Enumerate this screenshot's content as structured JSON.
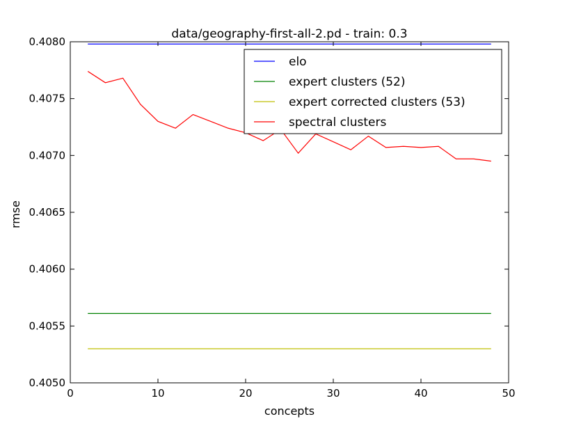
{
  "chart_data": {
    "type": "line",
    "title": "data/geography-first-all-2.pd - train: 0.3",
    "xlabel": "concepts",
    "ylabel": "rmse",
    "xlim": [
      0,
      50
    ],
    "ylim": [
      0.405,
      0.408
    ],
    "xticks": [
      0,
      10,
      20,
      30,
      40,
      50
    ],
    "xtick_labels": [
      "0",
      "10",
      "20",
      "30",
      "40",
      "50"
    ],
    "yticks": [
      0.405,
      0.4055,
      0.406,
      0.4065,
      0.407,
      0.4075,
      0.408
    ],
    "ytick_labels": [
      "0.4050",
      "0.4055",
      "0.4060",
      "0.4065",
      "0.4070",
      "0.4075",
      "0.4080"
    ],
    "grid": false,
    "legend_position": "top-right",
    "series": [
      {
        "name": "elo",
        "color": "#0000ff",
        "x": [
          2,
          48
        ],
        "y": [
          0.40798,
          0.40798
        ]
      },
      {
        "name": "expert clusters (52)",
        "color": "#008000",
        "x": [
          2,
          48
        ],
        "y": [
          0.40561,
          0.40561
        ]
      },
      {
        "name": "expert corrected clusters (53)",
        "color": "#bfbf00",
        "x": [
          2,
          48
        ],
        "y": [
          0.4053,
          0.4053
        ]
      },
      {
        "name": "spectral clusters",
        "color": "#ff0000",
        "x": [
          2,
          4,
          6,
          8,
          10,
          12,
          14,
          16,
          18,
          20,
          22,
          24,
          26,
          28,
          30,
          32,
          34,
          36,
          38,
          40,
          42,
          44,
          46,
          48
        ],
        "y": [
          0.40774,
          0.40764,
          0.40768,
          0.40745,
          0.4073,
          0.40724,
          0.40736,
          0.4073,
          0.40724,
          0.4072,
          0.40713,
          0.40723,
          0.40702,
          0.40719,
          0.40712,
          0.40705,
          0.40717,
          0.40707,
          0.40708,
          0.40707,
          0.40708,
          0.40697,
          0.40697,
          0.40695
        ]
      }
    ]
  }
}
